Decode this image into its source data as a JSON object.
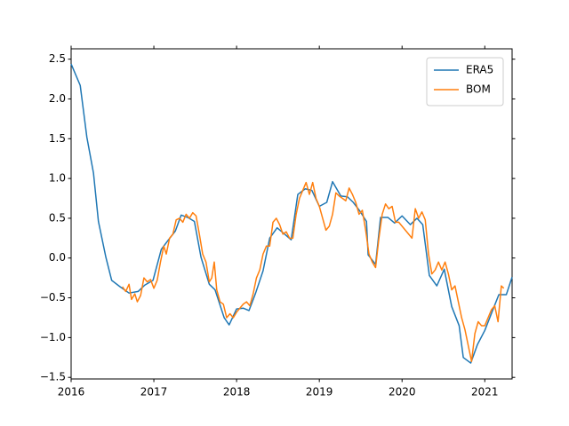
{
  "chart_data": {
    "type": "line",
    "xlim": [
      2016,
      2021.33
    ],
    "ylim": [
      -1.52,
      2.63
    ],
    "xticks": [
      2016,
      2017,
      2018,
      2019,
      2020,
      2021
    ],
    "yticks": [
      {
        "value": -1.5,
        "label": "−1.5"
      },
      {
        "value": -1.0,
        "label": "−1.0"
      },
      {
        "value": -0.5,
        "label": "−0.5"
      },
      {
        "value": 0.0,
        "label": "0.0"
      },
      {
        "value": 0.5,
        "label": "0.5"
      },
      {
        "value": 1.0,
        "label": "1.0"
      },
      {
        "value": 1.5,
        "label": "1.5"
      },
      {
        "value": 2.0,
        "label": "2.0"
      },
      {
        "value": 2.5,
        "label": "2.5"
      }
    ],
    "legend": "upper right",
    "series": [
      {
        "name": "ERA5",
        "color": "#1f77b4",
        "x": [
          2016.0,
          2016.11,
          2016.19,
          2016.27,
          2016.33,
          2016.42,
          2016.49,
          2016.59,
          2016.7,
          2016.81,
          2016.89,
          2016.99,
          2017.09,
          2017.17,
          2017.26,
          2017.33,
          2017.41,
          2017.49,
          2017.57,
          2017.67,
          2017.74,
          2017.85,
          2017.91,
          2018.0,
          2018.08,
          2018.15,
          2018.23,
          2018.32,
          2018.4,
          2018.49,
          2018.58,
          2018.66,
          2018.74,
          2018.83,
          2018.91,
          2019.0,
          2019.09,
          2019.16,
          2019.26,
          2019.34,
          2019.41,
          2019.49,
          2019.57,
          2019.59,
          2019.68,
          2019.74,
          2019.83,
          2019.91,
          2020.0,
          2020.1,
          2020.18,
          2020.25,
          2020.33,
          2020.42,
          2020.51,
          2020.6,
          2020.69,
          2020.74,
          2020.83,
          2020.91,
          2021.0,
          2021.09,
          2021.17,
          2021.26,
          2021.33
        ],
        "values": [
          2.44,
          2.17,
          1.52,
          1.07,
          0.46,
          0.01,
          -0.28,
          -0.36,
          -0.44,
          -0.42,
          -0.34,
          -0.28,
          0.11,
          0.22,
          0.34,
          0.54,
          0.51,
          0.46,
          0.01,
          -0.33,
          -0.4,
          -0.75,
          -0.84,
          -0.64,
          -0.63,
          -0.66,
          -0.44,
          -0.16,
          0.25,
          0.38,
          0.3,
          0.23,
          0.8,
          0.87,
          0.85,
          0.65,
          0.7,
          0.96,
          0.78,
          0.77,
          0.7,
          0.59,
          0.46,
          0.04,
          -0.08,
          0.51,
          0.51,
          0.44,
          0.53,
          0.42,
          0.5,
          0.42,
          -0.22,
          -0.35,
          -0.14,
          -0.61,
          -0.85,
          -1.25,
          -1.32,
          -1.09,
          -0.91,
          -0.67,
          -0.46,
          -0.46,
          -0.24
        ]
      },
      {
        "name": "BOM",
        "color": "#ff7f0e",
        "x": [
          2016.62,
          2016.66,
          2016.7,
          2016.73,
          2016.77,
          2016.8,
          2016.84,
          2016.88,
          2016.92,
          2016.96,
          2017.0,
          2017.04,
          2017.08,
          2017.12,
          2017.15,
          2017.19,
          2017.23,
          2017.27,
          2017.31,
          2017.35,
          2017.39,
          2017.43,
          2017.47,
          2017.51,
          2017.55,
          2017.59,
          2017.63,
          2017.67,
          2017.7,
          2017.73,
          2017.76,
          2017.8,
          2017.84,
          2017.88,
          2017.92,
          2017.96,
          2018.0,
          2018.04,
          2018.08,
          2018.12,
          2018.16,
          2018.2,
          2018.24,
          2018.28,
          2018.32,
          2018.36,
          2018.4,
          2018.44,
          2018.48,
          2018.52,
          2018.56,
          2018.6,
          2018.64,
          2018.68,
          2018.72,
          2018.76,
          2018.8,
          2018.84,
          2018.88,
          2018.92,
          2018.96,
          2019.0,
          2019.04,
          2019.08,
          2019.12,
          2019.16,
          2019.2,
          2019.24,
          2019.28,
          2019.32,
          2019.36,
          2019.4,
          2019.44,
          2019.48,
          2019.52,
          2019.56,
          2019.6,
          2019.64,
          2019.68,
          2019.72,
          2019.76,
          2019.8,
          2019.84,
          2019.88,
          2019.92,
          2019.96,
          2020.0,
          2020.04,
          2020.08,
          2020.12,
          2020.16,
          2020.2,
          2020.24,
          2020.28,
          2020.32,
          2020.36,
          2020.4,
          2020.44,
          2020.48,
          2020.52,
          2020.56,
          2020.6,
          2020.64,
          2020.68,
          2020.72,
          2020.76,
          2020.8,
          2020.84,
          2020.88,
          2020.92,
          2020.96,
          2021.0,
          2021.04,
          2021.08,
          2021.12,
          2021.16,
          2021.2,
          2021.23
        ],
        "values": [
          -0.36,
          -0.42,
          -0.33,
          -0.52,
          -0.45,
          -0.55,
          -0.47,
          -0.25,
          -0.3,
          -0.27,
          -0.38,
          -0.28,
          -0.05,
          0.15,
          0.05,
          0.25,
          0.3,
          0.48,
          0.5,
          0.45,
          0.55,
          0.5,
          0.57,
          0.53,
          0.3,
          0.05,
          -0.05,
          -0.3,
          -0.25,
          -0.05,
          -0.4,
          -0.55,
          -0.58,
          -0.75,
          -0.7,
          -0.75,
          -0.68,
          -0.63,
          -0.58,
          -0.55,
          -0.6,
          -0.45,
          -0.25,
          -0.15,
          0.05,
          0.15,
          0.15,
          0.45,
          0.5,
          0.42,
          0.3,
          0.33,
          0.25,
          0.25,
          0.55,
          0.75,
          0.85,
          0.95,
          0.8,
          0.95,
          0.75,
          0.65,
          0.5,
          0.35,
          0.4,
          0.55,
          0.82,
          0.78,
          0.75,
          0.72,
          0.88,
          0.8,
          0.7,
          0.55,
          0.6,
          0.35,
          0.05,
          -0.05,
          -0.12,
          0.25,
          0.55,
          0.68,
          0.62,
          0.65,
          0.45,
          0.45,
          0.4,
          0.35,
          0.3,
          0.25,
          0.62,
          0.5,
          0.58,
          0.48,
          0.05,
          -0.2,
          -0.15,
          -0.05,
          -0.15,
          -0.05,
          -0.2,
          -0.4,
          -0.35,
          -0.55,
          -0.75,
          -0.9,
          -1.1,
          -1.3,
          -0.95,
          -0.8,
          -0.85,
          -0.85,
          -0.75,
          -0.65,
          -0.6,
          -0.8,
          -0.35,
          -0.38
        ]
      }
    ]
  }
}
